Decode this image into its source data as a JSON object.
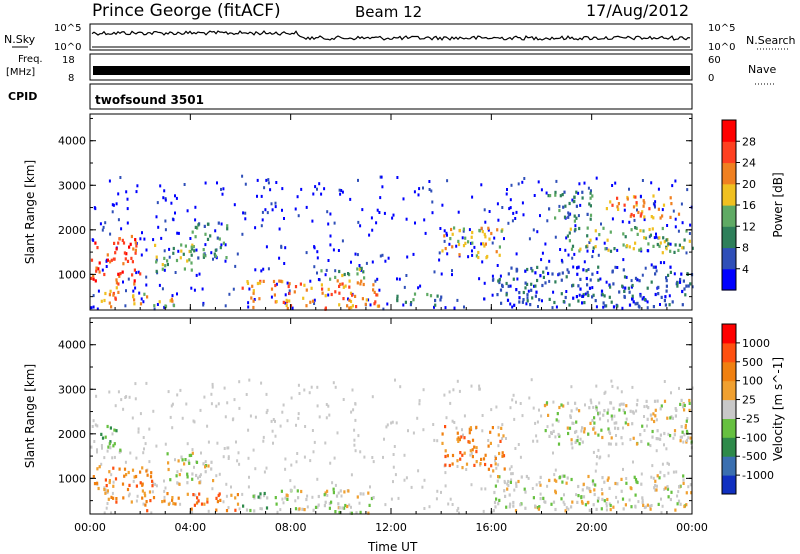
{
  "header": {
    "station": "Prince George (fitACF)",
    "beam": "Beam 12",
    "date": "17/Aug/2012"
  },
  "panels": {
    "nsky": {
      "left_label": "N.Sky",
      "right_label": "N.Search",
      "left_ticks": [
        "10^5",
        "10^0"
      ],
      "right_ticks": [
        "10^5",
        "10^0"
      ]
    },
    "freq": {
      "left_label_1": "Freq.",
      "left_label_2": "[MHz]",
      "right_label": "Nave",
      "left_ticks": [
        "18",
        "8"
      ],
      "right_ticks": [
        "60",
        "0"
      ]
    },
    "cpid": {
      "left_label": "CPID",
      "program": "twofsound 3501"
    }
  },
  "chart_data": [
    {
      "type": "heatmap",
      "title": "",
      "xlabel": "",
      "ylabel": "Slant Range [km]",
      "x_ticks": [
        "00:00",
        "04:00",
        "08:00",
        "12:00",
        "16:00",
        "20:00",
        "00:00"
      ],
      "x_range_hours": [
        0,
        24
      ],
      "y_ticks": [
        1000,
        2000,
        3000,
        4000
      ],
      "ylim": [
        200,
        4600
      ],
      "colorbar": {
        "label": "Power [dB]",
        "ticks": [
          "4",
          "8",
          "12",
          "16",
          "20",
          "24",
          "28"
        ],
        "colors": [
          "#0000ff",
          "#2f4fb8",
          "#2e7f5a",
          "#5faa64",
          "#f0c020",
          "#f08020",
          "#ff4020",
          "#ff0000"
        ]
      },
      "regions": [
        {
          "t0": 0.0,
          "t1": 2.0,
          "r0": 800,
          "r1": 1900,
          "level": 6
        },
        {
          "t0": 0.2,
          "t1": 1.2,
          "r0": 300,
          "r1": 800,
          "level": 5
        },
        {
          "t0": 1.5,
          "t1": 3.5,
          "r0": 300,
          "r1": 600,
          "level": 4
        },
        {
          "t0": 2.5,
          "t1": 4.5,
          "r0": 1100,
          "r1": 1700,
          "level": 3
        },
        {
          "t0": 4.0,
          "t1": 5.5,
          "r0": 1400,
          "r1": 2200,
          "level": 2
        },
        {
          "t0": 6.0,
          "t1": 11.5,
          "r0": 250,
          "r1": 900,
          "level": 5
        },
        {
          "t0": 9.0,
          "t1": 11.0,
          "r0": 900,
          "r1": 1200,
          "level": 3
        },
        {
          "t0": 12.0,
          "t1": 14.0,
          "r0": 300,
          "r1": 600,
          "level": 2
        },
        {
          "t0": 14.0,
          "t1": 16.5,
          "r0": 1400,
          "r1": 2100,
          "level": 4
        },
        {
          "t0": 18.0,
          "t1": 20.0,
          "r0": 2200,
          "r1": 2900,
          "level": 2
        },
        {
          "t0": 20.5,
          "t1": 23.5,
          "r0": 2300,
          "r1": 2800,
          "level": 5
        },
        {
          "t0": 19.0,
          "t1": 24.0,
          "r0": 1500,
          "r1": 2100,
          "level": 3
        },
        {
          "t0": 16.0,
          "t1": 24.0,
          "r0": 300,
          "r1": 1200,
          "level": 1
        }
      ]
    },
    {
      "type": "heatmap",
      "title": "",
      "xlabel": "Time UT",
      "ylabel": "Slant Range [km]",
      "x_ticks": [
        "00:00",
        "04:00",
        "08:00",
        "12:00",
        "16:00",
        "20:00",
        "00:00"
      ],
      "x_range_hours": [
        0,
        24
      ],
      "y_ticks": [
        1000,
        2000,
        3000,
        4000
      ],
      "ylim": [
        200,
        4600
      ],
      "colorbar": {
        "label": "Velocity [m s^-1]",
        "ticks": [
          "1000",
          "500",
          "100",
          "25",
          "-25",
          "-100",
          "-500",
          "-1000"
        ],
        "colors": [
          "#1030c0",
          "#3a6fb0",
          "#2e8a4a",
          "#66c040",
          "#c8c8c8",
          "#f0a030",
          "#f08010",
          "#ff5010",
          "#ff0000"
        ]
      },
      "regions": [
        {
          "t0": 0.0,
          "t1": 2.5,
          "r0": 500,
          "r1": 1300,
          "level": 6
        },
        {
          "t0": 2.0,
          "t1": 6.0,
          "r0": 300,
          "r1": 700,
          "level": 6
        },
        {
          "t0": 0.3,
          "t1": 1.2,
          "r0": 1600,
          "r1": 2200,
          "level": 3
        },
        {
          "t0": 3.0,
          "t1": 5.0,
          "r0": 900,
          "r1": 1600,
          "level": 4
        },
        {
          "t0": 6.0,
          "t1": 7.5,
          "r0": 300,
          "r1": 700,
          "level": 3
        },
        {
          "t0": 7.5,
          "t1": 11.5,
          "r0": 250,
          "r1": 800,
          "level": 4
        },
        {
          "t0": 14.0,
          "t1": 16.5,
          "r0": 1200,
          "r1": 2200,
          "level": 6
        },
        {
          "t0": 18.0,
          "t1": 24.0,
          "r0": 1800,
          "r1": 2800,
          "level": 4
        },
        {
          "t0": 16.0,
          "t1": 24.0,
          "r0": 300,
          "r1": 1100,
          "level": 4
        }
      ]
    }
  ]
}
